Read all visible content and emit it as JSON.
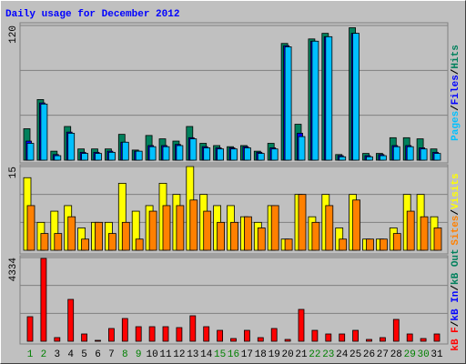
{
  "chart_data": [
    {
      "type": "bar",
      "title": "Daily usage for December 2012",
      "categories": [
        "1",
        "2",
        "3",
        "4",
        "5",
        "6",
        "7",
        "8",
        "9",
        "10",
        "11",
        "12",
        "13",
        "14",
        "15",
        "16",
        "17",
        "18",
        "19",
        "20",
        "21",
        "22",
        "23",
        "24",
        "25",
        "26",
        "27",
        "28",
        "29",
        "30",
        "31"
      ],
      "weekend_color": "#008000",
      "weekends": [
        0,
        1,
        7,
        8,
        14,
        15,
        21,
        22,
        28,
        29
      ],
      "ylim": [
        0,
        120
      ],
      "yticks": [
        120
      ],
      "separator": "/",
      "legend": [
        {
          "text": "Pages",
          "color": "#00c0ff"
        },
        {
          "text": "Files",
          "color": "#0000ff"
        },
        {
          "text": "Hits",
          "color": "#00805c"
        }
      ],
      "series": [
        {
          "name": "Hits",
          "color": "#00805c",
          "values": [
            28,
            54,
            8,
            30,
            10,
            10,
            10,
            23,
            9,
            22,
            19,
            17,
            30,
            15,
            13,
            12,
            13,
            8,
            15,
            104,
            32,
            108,
            113,
            5,
            118,
            6,
            6,
            20,
            20,
            19,
            10
          ]
        },
        {
          "name": "Files",
          "color": "#0000ff",
          "values": [
            17,
            51,
            5,
            25,
            7,
            7,
            8,
            16,
            8,
            13,
            13,
            14,
            20,
            12,
            11,
            11,
            12,
            7,
            11,
            102,
            24,
            106,
            110,
            4,
            113,
            4,
            5,
            13,
            13,
            11,
            7
          ]
        },
        {
          "name": "Pages",
          "color": "#00c0ff",
          "values": [
            15,
            50,
            4,
            24,
            6,
            6,
            7,
            16,
            8,
            12,
            12,
            13,
            19,
            11,
            10,
            10,
            11,
            6,
            10,
            101,
            21,
            106,
            110,
            3,
            113,
            3,
            4,
            12,
            12,
            10,
            6
          ]
        }
      ]
    },
    {
      "type": "bar",
      "ylim": [
        0,
        15
      ],
      "yticks": [
        15
      ],
      "separator": "/",
      "legend": [
        {
          "text": "Sites",
          "color": "#ff8000"
        },
        {
          "text": "Visits",
          "color": "#ffff00"
        }
      ],
      "series": [
        {
          "name": "Visits",
          "color": "#ffff00",
          "values": [
            13,
            5,
            7,
            8,
            4,
            5,
            5,
            12,
            7,
            8,
            12,
            10,
            15,
            10,
            8,
            8,
            6,
            5,
            8,
            2,
            10,
            6,
            10,
            4,
            10,
            2,
            2,
            4,
            10,
            10,
            6
          ]
        },
        {
          "name": "Sites",
          "color": "#ff8000",
          "values": [
            8,
            3,
            3,
            6,
            2,
            5,
            3,
            5,
            2,
            7,
            8,
            8,
            9,
            7,
            5,
            5,
            6,
            4,
            8,
            2,
            10,
            5,
            8,
            2,
            9,
            2,
            2,
            3,
            7,
            6,
            4
          ]
        }
      ]
    },
    {
      "type": "bar",
      "ylim": [
        0,
        4334
      ],
      "yticks": [
        4334
      ],
      "separator": "/",
      "legend": [
        {
          "text": "kB F",
          "color": "#ff0000"
        },
        {
          "text": "kB In",
          "color": "#0000ff"
        },
        {
          "text": "kB Out",
          "color": "#00805c"
        }
      ],
      "series": [
        {
          "name": "kB F",
          "color": "#ff0000",
          "values": [
            1272,
            4287,
            190,
            2167,
            377,
            47,
            660,
            1178,
            754,
            754,
            754,
            707,
            1319,
            754,
            565,
            141,
            565,
            188,
            660,
            94,
            1649,
            565,
            377,
            377,
            565,
            94,
            188,
            1131,
            377,
            141,
            377
          ]
        }
      ]
    }
  ]
}
